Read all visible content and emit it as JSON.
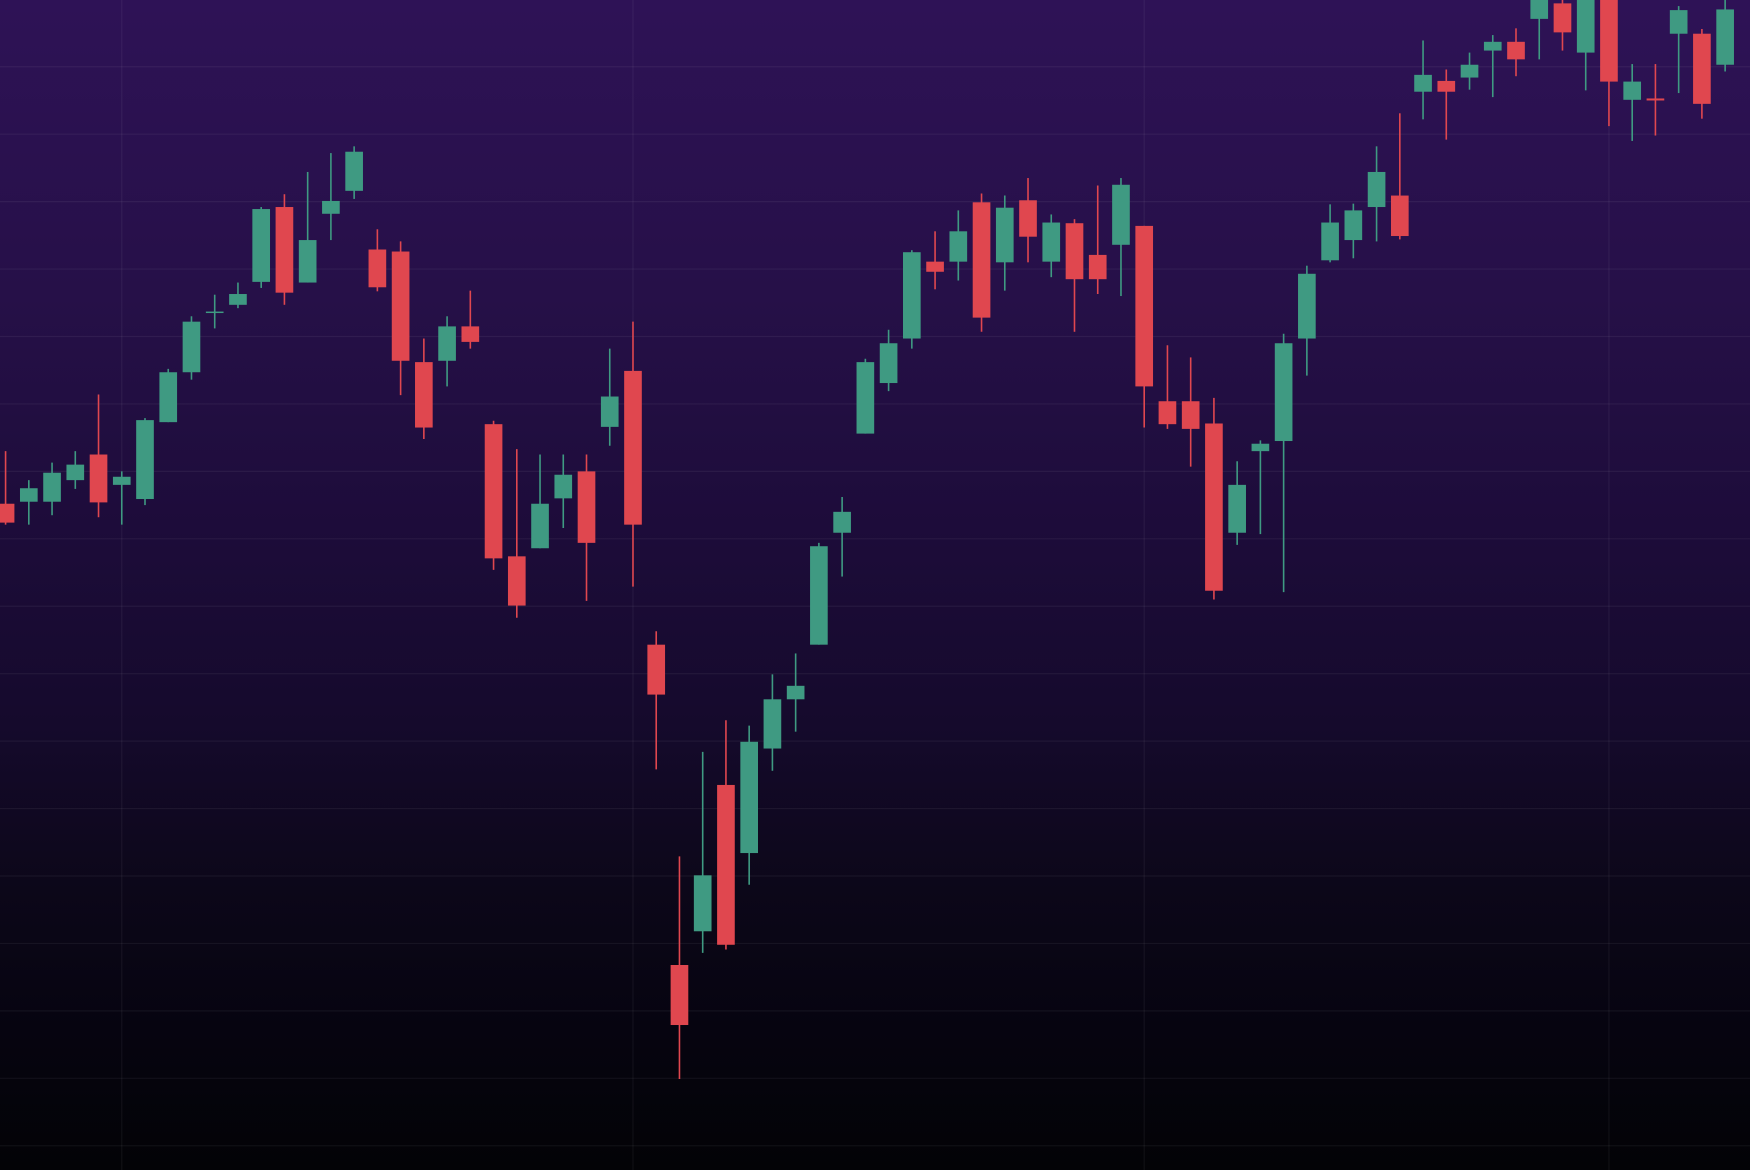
{
  "chart_data": {
    "type": "candlestick",
    "open": [
      95.2,
      95.5,
      95.5,
      98.7,
      102.5,
      98.0,
      95.9,
      107.3,
      114.7,
      123.5,
      124.7,
      128.1,
      139.2,
      128.0,
      138.2,
      141.6,
      132.9,
      132.6,
      116.2,
      116.4,
      121.5,
      107.0,
      87.4,
      88.6,
      96.0,
      100.0,
      106.6,
      114.9,
      74.3,
      26.8,
      31.8,
      53.5,
      43.4,
      58.9,
      66.2,
      74.3,
      90.9,
      105.6,
      113.1,
      119.7,
      131.1,
      131.1,
      139.9,
      131.0,
      140.2,
      131.1,
      136.8,
      132.1,
      133.6,
      136.4,
      110.4,
      110.4,
      107.1,
      90.9,
      103.0,
      104.5,
      119.7,
      131.3,
      134.3,
      139.2,
      140.9,
      156.3,
      157.9,
      158.4,
      162.4,
      163.7,
      167.1,
      169.4,
      162.1,
      172.0,
      155.1,
      155.3,
      164.9,
      164.9,
      160.3
    ],
    "high": [
      103.0,
      98.7,
      101.3,
      103.0,
      111.4,
      100.0,
      107.9,
      115.2,
      123.0,
      126.2,
      128.0,
      139.2,
      141.1,
      144.4,
      147.2,
      148.2,
      135.9,
      134.1,
      119.7,
      123.0,
      126.8,
      107.5,
      103.3,
      102.5,
      102.5,
      102.5,
      118.2,
      122.2,
      76.3,
      42.9,
      58.4,
      63.1,
      62.3,
      69.9,
      73.0,
      89.4,
      96.2,
      116.7,
      121.0,
      132.8,
      135.6,
      138.7,
      141.2,
      140.9,
      143.5,
      138.1,
      137.4,
      142.4,
      143.5,
      136.4,
      118.7,
      116.9,
      110.9,
      101.5,
      104.6,
      120.4,
      130.5,
      139.6,
      139.7,
      148.2,
      153.1,
      163.9,
      159.6,
      162.1,
      164.7,
      165.7,
      171.5,
      171.0,
      172.0,
      173.0,
      160.4,
      160.4,
      169.0,
      165.6,
      171.0
    ],
    "low": [
      92.1,
      92.1,
      93.5,
      97.4,
      93.2,
      92.1,
      95.0,
      107.3,
      113.6,
      121.2,
      124.2,
      127.2,
      124.7,
      128.0,
      134.3,
      140.4,
      126.7,
      111.3,
      104.8,
      112.6,
      118.2,
      85.4,
      78.3,
      88.6,
      91.6,
      80.8,
      103.8,
      82.9,
      55.8,
      9.9,
      28.6,
      29.1,
      38.7,
      55.6,
      61.4,
      74.3,
      84.4,
      105.6,
      111.9,
      118.2,
      127.0,
      128.3,
      120.7,
      126.8,
      131.0,
      128.8,
      120.7,
      126.3,
      126.0,
      106.5,
      106.3,
      100.7,
      81.0,
      89.1,
      90.7,
      82.1,
      114.2,
      131.0,
      131.6,
      134.1,
      134.4,
      152.2,
      149.2,
      156.6,
      155.5,
      158.6,
      161.1,
      162.4,
      156.5,
      151.2,
      149.0,
      149.8,
      156.1,
      152.3,
      159.3
    ],
    "close": [
      92.4,
      97.5,
      99.8,
      101.0,
      95.4,
      99.2,
      107.6,
      114.7,
      122.2,
      123.7,
      126.3,
      138.9,
      126.5,
      134.3,
      140.1,
      147.4,
      127.3,
      116.4,
      106.5,
      121.5,
      119.2,
      87.1,
      80.1,
      95.2,
      99.5,
      89.4,
      111.1,
      92.1,
      66.9,
      17.9,
      40.1,
      29.8,
      59.9,
      66.2,
      68.2,
      88.9,
      94.0,
      116.2,
      119.0,
      132.5,
      129.6,
      135.6,
      122.8,
      139.1,
      134.8,
      136.9,
      128.5,
      128.5,
      142.5,
      112.6,
      107.0,
      106.3,
      82.3,
      98.0,
      104.1,
      119.0,
      129.3,
      136.9,
      138.7,
      144.4,
      134.9,
      158.8,
      156.3,
      160.3,
      163.7,
      161.1,
      170.5,
      165.1,
      171.0,
      157.8,
      157.8,
      155.0,
      168.4,
      154.5,
      168.5
    ],
    "up_color": "#3f9a82",
    "down_color": "#e0474f",
    "xlim": [
      -0.24,
      75.07
    ],
    "xticks": [
      5,
      27,
      49,
      69
    ],
    "ylim": [
      -3.6,
      169.9
    ],
    "yticks": [
      0,
      10,
      20,
      30,
      40,
      50,
      60,
      70,
      80,
      90,
      100,
      110,
      120,
      130,
      140,
      150,
      160
    ],
    "grid": true
  }
}
